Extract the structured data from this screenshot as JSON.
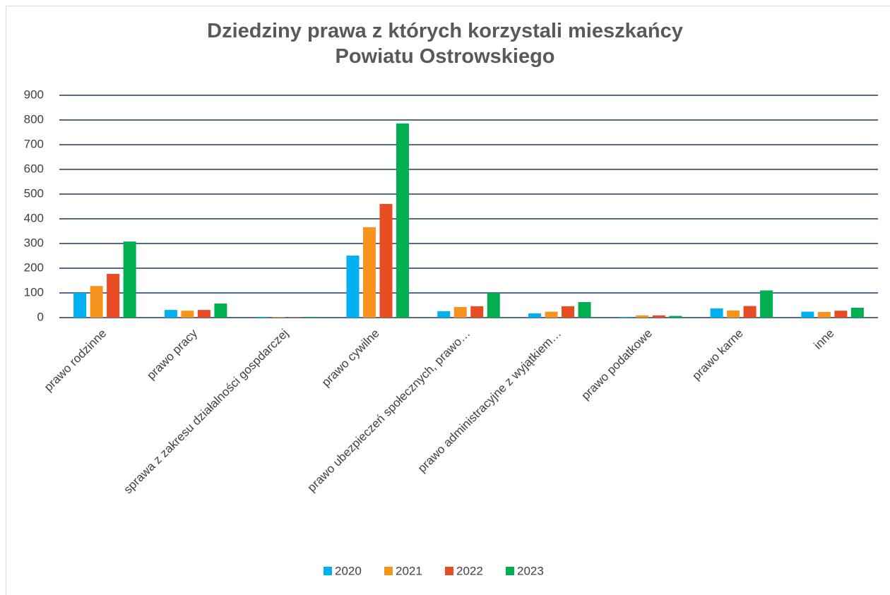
{
  "chart_data": {
    "type": "bar",
    "title": "Dziedziny prawa z których korzystali mieszkańcy Powiatu Ostrowskiego",
    "categories": [
      "prawo rodzinne",
      "prawo pracy",
      "sprawa z zakresu działalności gospdarczej",
      "prawo cywilne",
      "prawo ubezpieczeń społecznych, prawo…",
      "prawo administracyjne z wyjątkiem…",
      "prawo podatkowe",
      "prawo karne",
      "inne"
    ],
    "series": [
      {
        "name": "2020",
        "color": "#00b0f0",
        "values": [
          100,
          31,
          3,
          251,
          26,
          17,
          3,
          37,
          24
        ]
      },
      {
        "name": "2021",
        "color": "#f7941d",
        "values": [
          128,
          28,
          2,
          366,
          43,
          24,
          9,
          29,
          23
        ]
      },
      {
        "name": "2022",
        "color": "#e84c22",
        "values": [
          177,
          31,
          2,
          460,
          46,
          46,
          9,
          47,
          28
        ]
      },
      {
        "name": "2023",
        "color": "#00b050",
        "values": [
          308,
          57,
          3,
          786,
          100,
          63,
          7,
          110,
          40
        ]
      }
    ],
    "ylim": [
      0,
      900
    ],
    "yticks": [
      0,
      100,
      200,
      300,
      400,
      500,
      600,
      700,
      800,
      900
    ],
    "grid": true,
    "legend": "bottom"
  }
}
